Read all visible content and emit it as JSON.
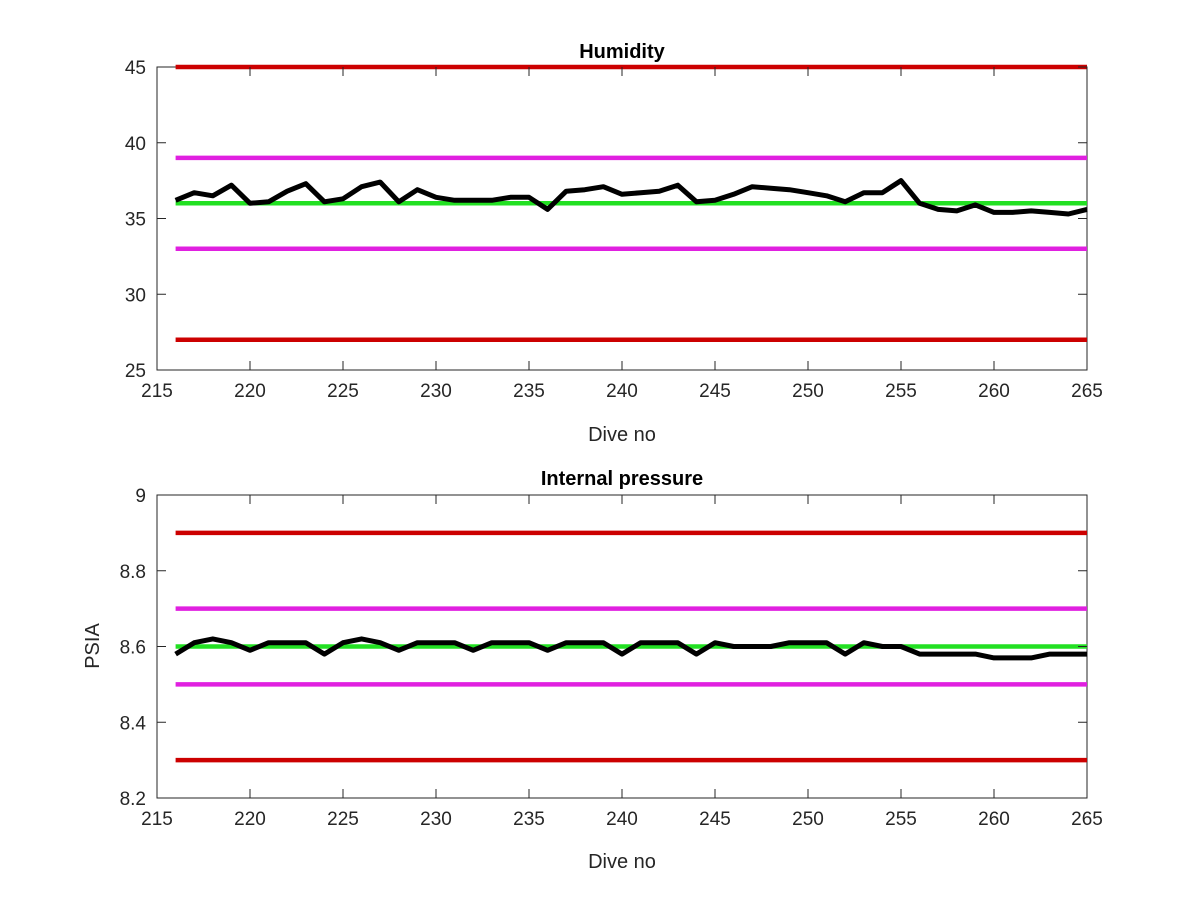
{
  "chart_data": [
    {
      "type": "line",
      "title": "Humidity",
      "xlabel": "Dive no",
      "ylabel": "",
      "xlim": [
        215,
        265
      ],
      "ylim": [
        25,
        45
      ],
      "xticks": [
        "215",
        "220",
        "225",
        "230",
        "235",
        "240",
        "245",
        "250",
        "255",
        "260",
        "265"
      ],
      "yticks": [
        "25",
        "30",
        "35",
        "40",
        "45"
      ],
      "grid": false,
      "series": [
        {
          "color": "#000000",
          "x": [
            216,
            217,
            218,
            219,
            220,
            221,
            222,
            223,
            224,
            225,
            226,
            227,
            228,
            229,
            230,
            231,
            232,
            233,
            234,
            235,
            236,
            237,
            238,
            239,
            240,
            241,
            242,
            243,
            244,
            245,
            246,
            247,
            248,
            249,
            250,
            251,
            252,
            253,
            254,
            255,
            256,
            257,
            258,
            259,
            260,
            261,
            262,
            263,
            264,
            265
          ],
          "values": [
            36.2,
            36.7,
            36.5,
            37.2,
            36.0,
            36.1,
            36.8,
            37.3,
            36.1,
            36.3,
            37.1,
            37.4,
            36.1,
            36.9,
            36.4,
            36.2,
            36.2,
            36.2,
            36.4,
            36.4,
            35.6,
            36.8,
            36.9,
            37.1,
            36.6,
            36.7,
            36.8,
            37.2,
            36.1,
            36.2,
            36.6,
            37.1,
            37.0,
            36.9,
            36.7,
            36.5,
            36.1,
            36.7,
            36.7,
            37.5,
            36.0,
            35.6,
            35.5,
            35.9,
            35.4,
            35.4,
            35.5,
            35.4,
            35.3,
            35.6
          ]
        },
        {
          "color": "#cc0000",
          "x": [
            216,
            265
          ],
          "values": [
            45,
            45
          ]
        },
        {
          "color": "#cc0000",
          "x": [
            216,
            265
          ],
          "values": [
            27,
            27
          ]
        },
        {
          "color": "#e020e0",
          "x": [
            216,
            265
          ],
          "values": [
            39,
            39
          ]
        },
        {
          "color": "#e020e0",
          "x": [
            216,
            265
          ],
          "values": [
            33,
            33
          ]
        },
        {
          "color": "#22e022",
          "x": [
            216,
            265
          ],
          "values": [
            36,
            36
          ]
        }
      ]
    },
    {
      "type": "line",
      "title": "Internal pressure",
      "xlabel": "Dive no",
      "ylabel": "PSIA",
      "xlim": [
        215,
        265
      ],
      "ylim": [
        8.2,
        9
      ],
      "xticks": [
        "215",
        "220",
        "225",
        "230",
        "235",
        "240",
        "245",
        "250",
        "255",
        "260",
        "265"
      ],
      "yticks": [
        "8.2",
        "8.4",
        "8.6",
        "8.8",
        "9"
      ],
      "grid": false,
      "series": [
        {
          "color": "#000000",
          "x": [
            216,
            217,
            218,
            219,
            220,
            221,
            222,
            223,
            224,
            225,
            226,
            227,
            228,
            229,
            230,
            231,
            232,
            233,
            234,
            235,
            236,
            237,
            238,
            239,
            240,
            241,
            242,
            243,
            244,
            245,
            246,
            247,
            248,
            249,
            250,
            251,
            252,
            253,
            254,
            255,
            256,
            257,
            258,
            259,
            260,
            261,
            262,
            263,
            264,
            265
          ],
          "values": [
            8.58,
            8.61,
            8.62,
            8.61,
            8.59,
            8.61,
            8.61,
            8.61,
            8.58,
            8.61,
            8.62,
            8.61,
            8.59,
            8.61,
            8.61,
            8.61,
            8.59,
            8.61,
            8.61,
            8.61,
            8.59,
            8.61,
            8.61,
            8.61,
            8.58,
            8.61,
            8.61,
            8.61,
            8.58,
            8.61,
            8.6,
            8.6,
            8.6,
            8.61,
            8.61,
            8.61,
            8.58,
            8.61,
            8.6,
            8.6,
            8.58,
            8.58,
            8.58,
            8.58,
            8.57,
            8.57,
            8.57,
            8.58,
            8.58,
            8.58
          ]
        },
        {
          "color": "#cc0000",
          "x": [
            216,
            265
          ],
          "values": [
            8.9,
            8.9
          ]
        },
        {
          "color": "#cc0000",
          "x": [
            216,
            265
          ],
          "values": [
            8.3,
            8.3
          ]
        },
        {
          "color": "#e020e0",
          "x": [
            216,
            265
          ],
          "values": [
            8.7,
            8.7
          ]
        },
        {
          "color": "#e020e0",
          "x": [
            216,
            265
          ],
          "values": [
            8.5,
            8.5
          ]
        },
        {
          "color": "#22e022",
          "x": [
            216,
            265
          ],
          "values": [
            8.6,
            8.6
          ]
        }
      ]
    }
  ]
}
